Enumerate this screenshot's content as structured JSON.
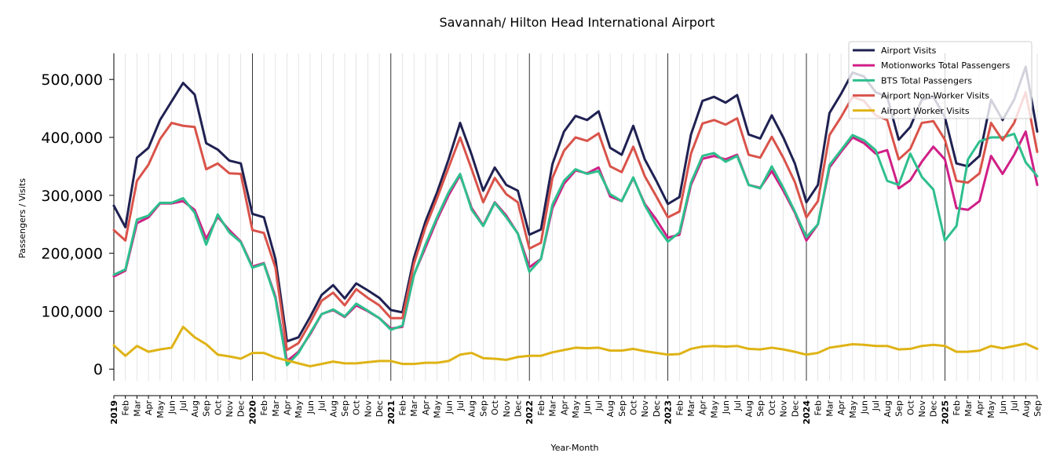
{
  "chart_data": {
    "type": "line",
    "title": "Savannah/ Hilton Head International Airport",
    "xlabel": "Year-Month",
    "ylabel": "Passengers / Visits",
    "ylim": [
      -20000,
      545000
    ],
    "yticks": [
      0,
      100000,
      200000,
      300000,
      400000,
      500000
    ],
    "ytick_labels": [
      "0",
      "100,000",
      "200,000",
      "300,000",
      "400,000",
      "500,000"
    ],
    "month_labels": [
      "",
      "Feb",
      "Mar",
      "Apr",
      "May",
      "Jun",
      "Jul",
      "Aug",
      "Sep",
      "Oct",
      "Nov",
      "Dec"
    ],
    "year_labels": [
      "2019",
      "2020",
      "2021",
      "2022",
      "2023",
      "2024",
      "2025"
    ],
    "legend_position": "top-right",
    "grid": "vertical monthly lines",
    "series": [
      {
        "name": "Airport Visits",
        "color": "#1f2152",
        "values": [
          282000,
          245000,
          365000,
          382000,
          430000,
          462000,
          494000,
          474000,
          390000,
          379000,
          360000,
          355000,
          268000,
          262000,
          190000,
          48000,
          55000,
          90000,
          128000,
          145000,
          122000,
          148000,
          136000,
          123000,
          102000,
          98000,
          192000,
          255000,
          305000,
          362000,
          425000,
          370000,
          308000,
          348000,
          318000,
          308000,
          232000,
          241000,
          354000,
          410000,
          437000,
          430000,
          445000,
          382000,
          370000,
          420000,
          362000,
          325000,
          285000,
          297000,
          405000,
          463000,
          470000,
          460000,
          473000,
          405000,
          398000,
          438000,
          400000,
          355000,
          288000,
          318000,
          442000,
          475000,
          512000,
          505000,
          478000,
          470000,
          396000,
          418000,
          465000,
          470000,
          435000,
          355000,
          350000,
          368000,
          465000,
          430000,
          465000,
          522000,
          410000
        ]
      },
      {
        "name": "Motionworks Total Passengers",
        "color": "#d01f87",
        "values": [
          160000,
          170000,
          252000,
          262000,
          286000,
          286000,
          290000,
          275000,
          225000,
          263000,
          240000,
          220000,
          177000,
          183000,
          125000,
          14000,
          30000,
          60000,
          95000,
          102000,
          90000,
          110000,
          100000,
          88000,
          70000,
          73000,
          163000,
          210000,
          258000,
          300000,
          335000,
          278000,
          248000,
          288000,
          265000,
          234000,
          176000,
          190000,
          278000,
          320000,
          343000,
          338000,
          348000,
          298000,
          290000,
          330000,
          285000,
          258000,
          227000,
          232000,
          318000,
          363000,
          368000,
          362000,
          370000,
          318000,
          313000,
          342000,
          308000,
          270000,
          222000,
          250000,
          348000,
          375000,
          400000,
          390000,
          372000,
          378000,
          312000,
          326000,
          358000,
          384000,
          362000,
          278000,
          275000,
          290000,
          368000,
          337000,
          370000,
          410000,
          318000
        ]
      },
      {
        "name": "BTS Total Passengers",
        "color": "#2ebf8d",
        "values": [
          163000,
          172000,
          258000,
          265000,
          287000,
          287000,
          295000,
          270000,
          215000,
          267000,
          236000,
          219000,
          175000,
          182000,
          122000,
          7000,
          28000,
          62000,
          95000,
          103000,
          91000,
          113000,
          101000,
          88000,
          68000,
          75000,
          162000,
          215000,
          262000,
          305000,
          337000,
          275000,
          247000,
          287000,
          262000,
          234000,
          168000,
          190000,
          284000,
          325000,
          345000,
          337000,
          342000,
          302000,
          290000,
          331000,
          283000,
          248000,
          220000,
          236000,
          322000,
          368000,
          373000,
          358000,
          368000,
          318000,
          312000,
          350000,
          313000,
          272000,
          228000,
          250000,
          352000,
          378000,
          404000,
          395000,
          378000,
          325000,
          318000,
          372000,
          332000,
          310000,
          222000,
          247000,
          362000,
          393000,
          400000,
          400000,
          406000,
          357000,
          333000
        ]
      },
      {
        "name": "Airport Non-Worker Visits",
        "color": "#d9534a",
        "values": [
          240000,
          222000,
          325000,
          353000,
          397000,
          425000,
          420000,
          418000,
          345000,
          355000,
          338000,
          337000,
          240000,
          235000,
          175000,
          33000,
          45000,
          80000,
          118000,
          132000,
          110000,
          138000,
          123000,
          110000,
          88000,
          88000,
          182000,
          245000,
          295000,
          348000,
          400000,
          345000,
          288000,
          330000,
          302000,
          288000,
          208000,
          218000,
          330000,
          377000,
          400000,
          394000,
          407000,
          350000,
          340000,
          384000,
          333000,
          298000,
          262000,
          272000,
          372000,
          424000,
          430000,
          422000,
          433000,
          370000,
          365000,
          401000,
          365000,
          323000,
          262000,
          290000,
          404000,
          435000,
          470000,
          463000,
          438000,
          430000,
          362000,
          380000,
          425000,
          428000,
          396000,
          325000,
          322000,
          338000,
          425000,
          395000,
          425000,
          478000,
          375000
        ]
      },
      {
        "name": "Airport Worker Visits",
        "color": "#dfb315",
        "values": [
          41000,
          23000,
          40000,
          30000,
          34000,
          37000,
          73000,
          55000,
          43000,
          25000,
          22000,
          18000,
          28000,
          28000,
          20000,
          15000,
          10000,
          5000,
          9000,
          13000,
          10000,
          10000,
          12000,
          14000,
          14000,
          9000,
          9000,
          11000,
          11000,
          14000,
          25000,
          28000,
          19000,
          18000,
          16000,
          21000,
          23000,
          23000,
          29000,
          33000,
          37000,
          36000,
          37000,
          32000,
          32000,
          35000,
          31000,
          28000,
          25000,
          26000,
          35000,
          39000,
          40000,
          39000,
          40000,
          35000,
          34000,
          37000,
          34000,
          30000,
          25000,
          28000,
          37000,
          40000,
          43000,
          42000,
          40000,
          40000,
          34000,
          35000,
          40000,
          42000,
          40000,
          30000,
          30000,
          32000,
          40000,
          36000,
          40000,
          44000,
          35000
        ]
      }
    ]
  }
}
